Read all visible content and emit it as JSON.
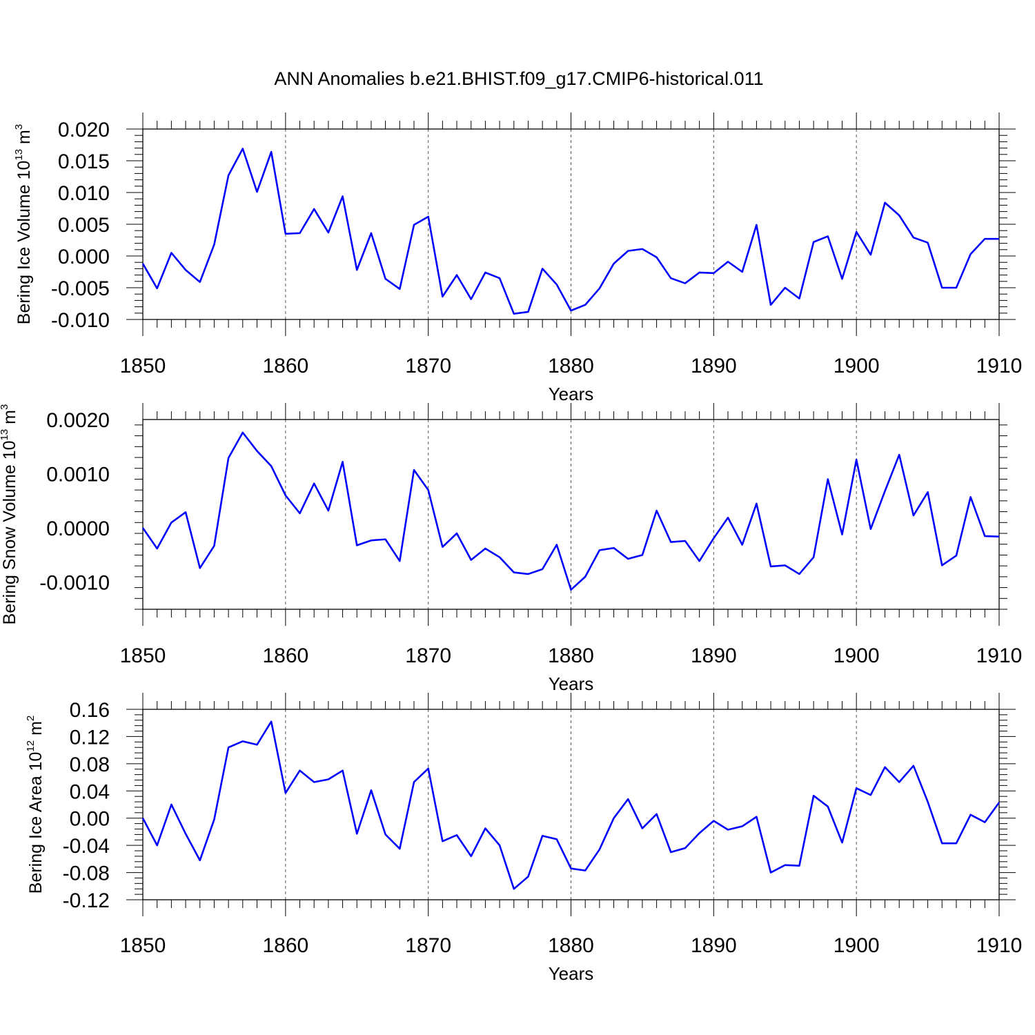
{
  "title": "ANN Anomalies b.e21.BHIST.f09_g17.CMIP6-historical.011",
  "line_color": "#0000ff",
  "chart_data": [
    {
      "type": "line",
      "ylabel": {
        "text": "Bering Ice Volume 10",
        "sup": "13",
        "unit": " m",
        "unit_sup": "3"
      },
      "xlabel": "Years",
      "xlim": [
        1850,
        1910
      ],
      "xticks": [
        1850,
        1860,
        1870,
        1880,
        1890,
        1900,
        1910
      ],
      "ylim": [
        -0.01,
        0.02
      ],
      "yticks": [
        -0.01,
        -0.005,
        0.0,
        0.005,
        0.01,
        0.015,
        0.02
      ],
      "ytick_labels": [
        "-0.010",
        "-0.005",
        "0.000",
        "0.005",
        "0.010",
        "0.015",
        "0.020"
      ],
      "x_start": 1850,
      "values": [
        -0.0012,
        -0.0051,
        0.0005,
        -0.0022,
        -0.0041,
        0.0018,
        0.0127,
        0.0169,
        0.0101,
        0.0164,
        0.0035,
        0.0036,
        0.0074,
        0.0037,
        0.0094,
        -0.0022,
        0.0036,
        -0.0036,
        -0.0052,
        0.0049,
        0.0062,
        -0.0064,
        -0.003,
        -0.0068,
        -0.0026,
        -0.0035,
        -0.0091,
        -0.0088,
        -0.002,
        -0.0045,
        -0.0086,
        -0.0077,
        -0.0051,
        -0.0012,
        0.0008,
        0.0011,
        -0.0002,
        -0.0035,
        -0.0043,
        -0.0026,
        -0.0027,
        -0.0009,
        -0.0025,
        0.0049,
        -0.0077,
        -0.005,
        -0.0067,
        0.0022,
        0.0031,
        -0.0036,
        0.0038,
        0.0002,
        0.0084,
        0.0064,
        0.0029,
        0.0021,
        -0.005,
        -0.005,
        0.0003,
        0.0027,
        0.0027
      ]
    },
    {
      "type": "line",
      "ylabel": {
        "text": "Bering Snow Volume 10",
        "sup": "13",
        "unit": " m",
        "unit_sup": "3"
      },
      "xlabel": "Years",
      "xlim": [
        1850,
        1910
      ],
      "xticks": [
        1850,
        1860,
        1870,
        1880,
        1890,
        1900,
        1910
      ],
      "ylim": [
        -0.0015,
        0.002
      ],
      "yticks": [
        -0.001,
        0.0,
        0.001,
        0.002
      ],
      "ytick_labels": [
        "-0.0010",
        "0.0000",
        "0.0010",
        "0.0020"
      ],
      "x_start": 1850,
      "values": [
        0.0,
        -0.00038,
        0.0001,
        0.00029,
        -0.00074,
        -0.00033,
        0.00129,
        0.00176,
        0.00142,
        0.00114,
        0.0006,
        0.00027,
        0.00082,
        0.00032,
        0.00122,
        -0.00032,
        -0.00023,
        -0.00021,
        -0.00061,
        0.00107,
        0.0007,
        -0.00035,
        -0.0001,
        -0.00059,
        -0.00038,
        -0.00054,
        -0.00082,
        -0.00085,
        -0.00076,
        -0.00031,
        -0.00114,
        -0.0009,
        -0.00041,
        -0.00037,
        -0.00057,
        -0.0005,
        0.00032,
        -0.00026,
        -0.00024,
        -0.00061,
        -0.00019,
        0.00019,
        -0.00031,
        0.00045,
        -0.00071,
        -0.00069,
        -0.00085,
        -0.00054,
        0.0009,
        -0.00012,
        0.00126,
        -2e-05,
        0.00068,
        0.00135,
        0.00023,
        0.00066,
        -0.00069,
        -0.00051,
        0.00057,
        -0.00015,
        -0.00016
      ]
    },
    {
      "type": "line",
      "ylabel": {
        "text": "Bering Ice Area 10",
        "sup": "12",
        "unit": " m",
        "unit_sup": "2"
      },
      "xlabel": "Years",
      "xlim": [
        1850,
        1910
      ],
      "xticks": [
        1850,
        1860,
        1870,
        1880,
        1890,
        1900,
        1910
      ],
      "ylim": [
        -0.12,
        0.16
      ],
      "yticks": [
        -0.12,
        -0.08,
        -0.04,
        0.0,
        0.04,
        0.08,
        0.12,
        0.16
      ],
      "ytick_labels": [
        "-0.12",
        "-0.08",
        "-0.04",
        "0.00",
        "0.04",
        "0.08",
        "0.12",
        "0.16"
      ],
      "x_start": 1850,
      "values": [
        0.0,
        -0.04,
        0.02,
        -0.023,
        -0.062,
        -0.002,
        0.104,
        0.113,
        0.108,
        0.142,
        0.037,
        0.07,
        0.053,
        0.057,
        0.07,
        -0.023,
        0.041,
        -0.024,
        -0.045,
        0.053,
        0.073,
        -0.034,
        -0.025,
        -0.056,
        -0.015,
        -0.04,
        -0.104,
        -0.086,
        -0.026,
        -0.031,
        -0.074,
        -0.077,
        -0.046,
        0.0,
        0.028,
        -0.015,
        0.006,
        -0.05,
        -0.044,
        -0.022,
        -0.004,
        -0.017,
        -0.012,
        0.002,
        -0.08,
        -0.069,
        -0.07,
        0.033,
        0.017,
        -0.036,
        0.044,
        0.034,
        0.075,
        0.053,
        0.077,
        0.024,
        -0.037,
        -0.037,
        0.005,
        -0.006,
        0.023
      ]
    }
  ]
}
